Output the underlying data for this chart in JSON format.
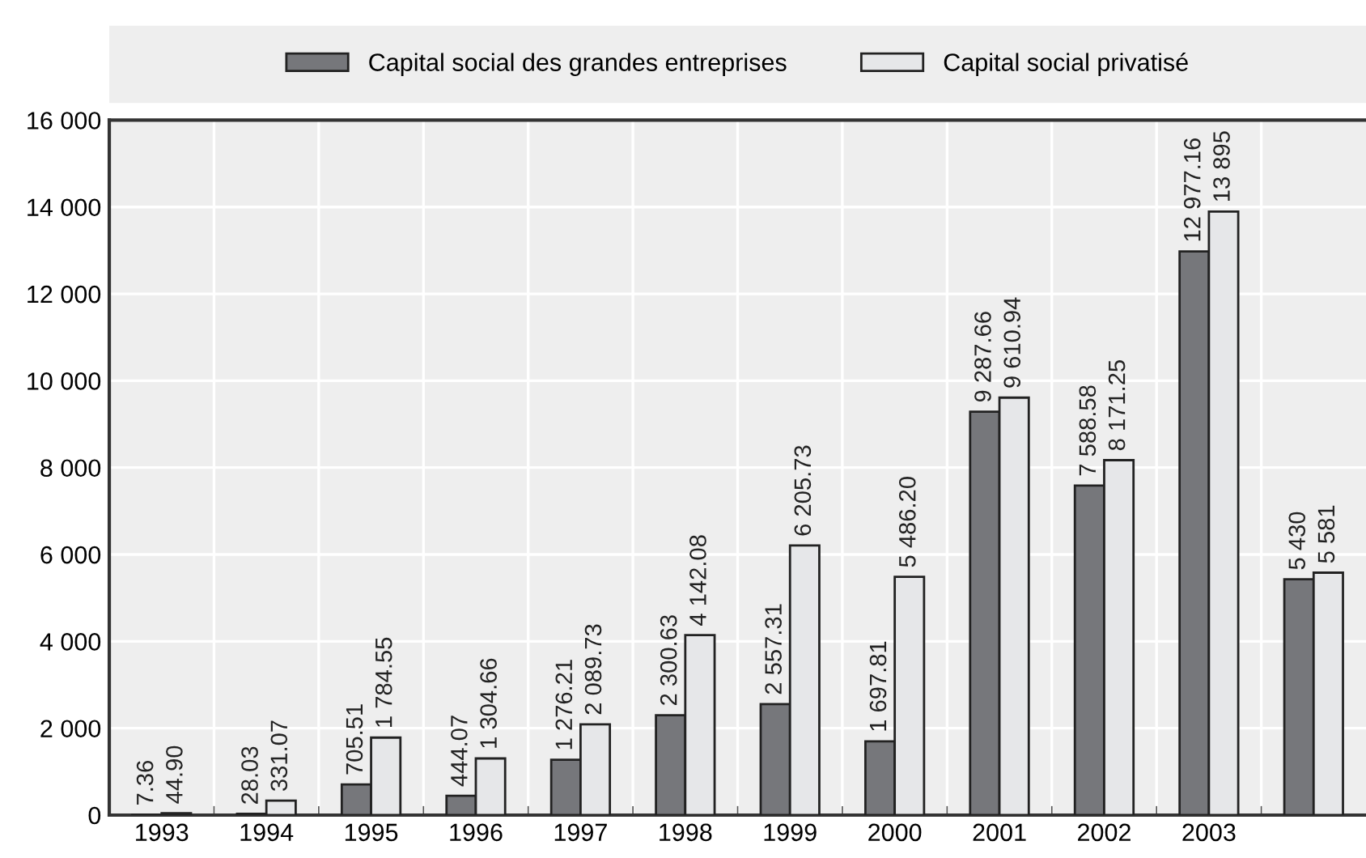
{
  "chart_data": {
    "type": "bar",
    "categories": [
      "1993",
      "1994",
      "1995",
      "1996",
      "1997",
      "1998",
      "1999",
      "2000",
      "2001",
      "2002",
      "2003",
      null
    ],
    "series": [
      {
        "name": "Capital social des grandes entreprises",
        "color": "#76777b",
        "values": [
          7.36,
          28.03,
          705.51,
          444.07,
          1276.21,
          2300.63,
          2557.31,
          1697.81,
          9287.66,
          7588.58,
          12977.16,
          5430
        ],
        "value_labels": [
          "7.36",
          "28.03",
          "705.51",
          "444.07",
          "1 276.21",
          "2 300.63",
          "2 557.31",
          "1 697.81",
          "9 287.66",
          "7 588.58",
          "12 977.16",
          "5 430"
        ]
      },
      {
        "name": "Capital social privatisé",
        "color": "#e6e7e9",
        "values": [
          44.9,
          331.07,
          1784.55,
          1304.66,
          2089.73,
          4142.08,
          6205.73,
          5486.2,
          9610.94,
          8171.25,
          13895,
          5581
        ],
        "value_labels": [
          "44.90",
          "331.07",
          "1 784.55",
          "1 304.66",
          "2 089.73",
          "4 142.08",
          "6 205.73",
          "5 486.20",
          "9 610.94",
          "8 171.25",
          "13 895",
          "5 581"
        ]
      }
    ],
    "ylim": [
      0,
      16000
    ],
    "yticks": [
      0,
      {
        "value": 2000,
        "label": "2 000"
      },
      {
        "value": 4000,
        "label": "4 000"
      },
      {
        "value": 6000,
        "label": "6 000"
      },
      {
        "value": 8000,
        "label": "8 000"
      },
      {
        "value": 10000,
        "label": "10 000"
      },
      {
        "value": 12000,
        "label": "12 000"
      },
      {
        "value": 14000,
        "label": "14 000"
      },
      {
        "value": 16000,
        "label": "16 000"
      }
    ],
    "grid": true,
    "legend": "top"
  }
}
